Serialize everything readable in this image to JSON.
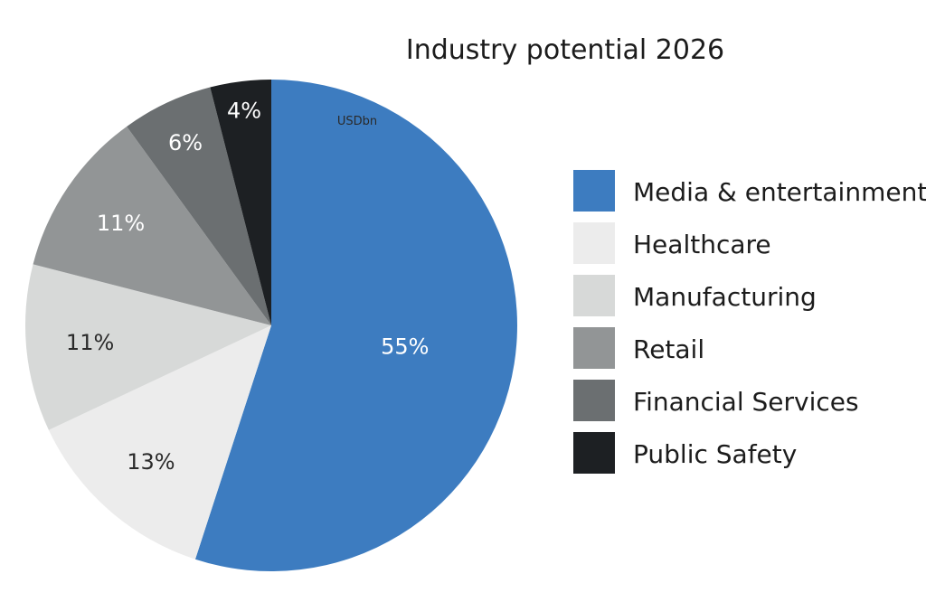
{
  "chart_data": {
    "type": "pie",
    "title": "Industry potential 2026",
    "unit": "USDbn",
    "categories": [
      "Media & entertainment",
      "Healthcare",
      "Manufacturing",
      "Retail",
      "Financial Services",
      "Public Safety"
    ],
    "values": [
      55,
      13,
      11,
      11,
      6,
      4
    ],
    "labels": [
      "55%",
      "13%",
      "11%",
      "11%",
      "6%",
      "4%"
    ],
    "colors": [
      "#3d7cc0",
      "#ececec",
      "#d7d9d8",
      "#929596",
      "#6b6f71",
      "#1d2023"
    ],
    "label_colors": [
      "#ffffff",
      "#2a2a2a",
      "#2a2a2a",
      "#ffffff",
      "#ffffff",
      "#ffffff"
    ],
    "start_angle": "12 o'clock",
    "direction": "clockwise",
    "legend_position": "right"
  }
}
